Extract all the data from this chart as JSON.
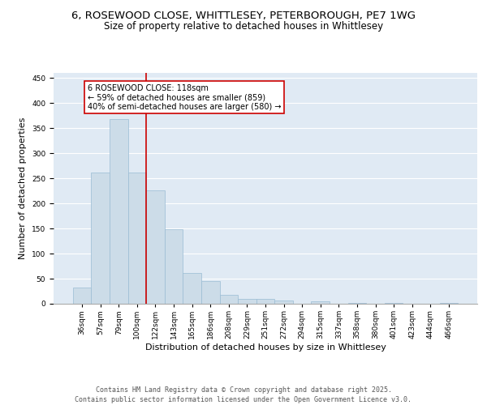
{
  "title1": "6, ROSEWOOD CLOSE, WHITTLESEY, PETERBOROUGH, PE7 1WG",
  "title2": "Size of property relative to detached houses in Whittlesey",
  "xlabel": "Distribution of detached houses by size in Whittlesey",
  "ylabel": "Number of detached properties",
  "categories": [
    "36sqm",
    "57sqm",
    "79sqm",
    "100sqm",
    "122sqm",
    "143sqm",
    "165sqm",
    "186sqm",
    "208sqm",
    "229sqm",
    "251sqm",
    "272sqm",
    "294sqm",
    "315sqm",
    "337sqm",
    "358sqm",
    "380sqm",
    "401sqm",
    "423sqm",
    "444sqm",
    "466sqm"
  ],
  "values": [
    32,
    262,
    368,
    262,
    226,
    148,
    61,
    45,
    17,
    10,
    10,
    7,
    0,
    5,
    0,
    2,
    0,
    1,
    0,
    0,
    2
  ],
  "bar_color": "#ccdce8",
  "bar_edge_color": "#9abcd4",
  "bg_color": "#e0eaf4",
  "grid_color": "#ffffff",
  "vline_color": "#cc0000",
  "annotation_text": "6 ROSEWOOD CLOSE: 118sqm\n← 59% of detached houses are smaller (859)\n40% of semi-detached houses are larger (580) →",
  "annotation_box_color": "#ffffff",
  "annotation_box_edge_color": "#cc0000",
  "ylim": [
    0,
    460
  ],
  "yticks": [
    0,
    50,
    100,
    150,
    200,
    250,
    300,
    350,
    400,
    450
  ],
  "footer": "Contains HM Land Registry data © Crown copyright and database right 2025.\nContains public sector information licensed under the Open Government Licence v3.0.",
  "title_fontsize": 9.5,
  "subtitle_fontsize": 8.5,
  "axis_label_fontsize": 8,
  "tick_fontsize": 6.5,
  "annotation_fontsize": 7,
  "footer_fontsize": 6
}
